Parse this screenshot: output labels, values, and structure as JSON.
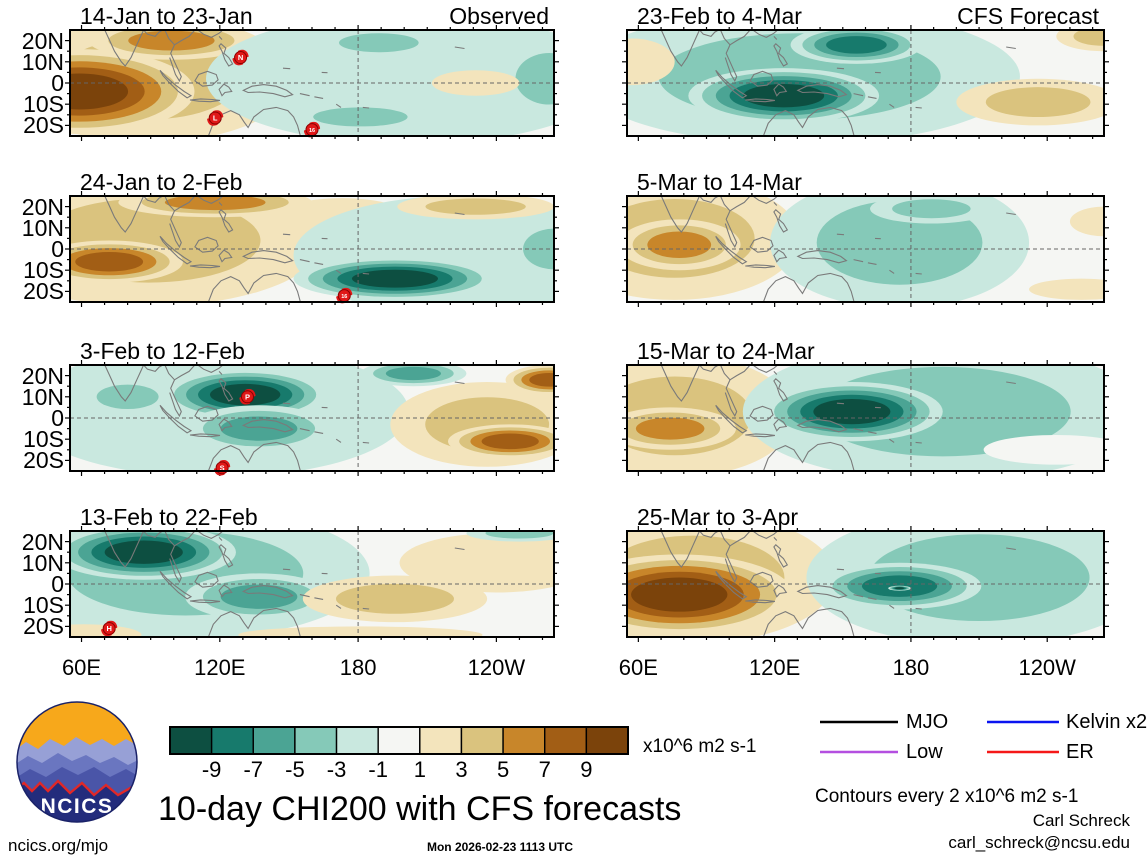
{
  "meta": {
    "title": "10-day CHI200 with CFS forecasts",
    "timestamp": "Mon 2026-02-23 1113 UTC",
    "site": "ncics.org/mjo",
    "contour_note": "Contours every 2 x10^6 m2 s-1",
    "credit_name": "Carl Schreck",
    "credit_email": "carl_schreck@ncsu.edu",
    "logo_text": "NCICS"
  },
  "chart_data": {
    "type": "heatmap",
    "subtype": "filled-contour longitude-latitude anomaly maps",
    "title": "10-day CHI200 with CFS forecasts",
    "units": "x10^6 m2 s-1",
    "columns": [
      "Observed",
      "CFS Forecast"
    ],
    "x_ticks": [
      {
        "lon": 60,
        "label": "60E"
      },
      {
        "lon": 120,
        "label": "120E"
      },
      {
        "lon": 180,
        "label": "180"
      },
      {
        "lon": 240,
        "label": "120W"
      }
    ],
    "y_ticks": [
      {
        "lat": 20,
        "label": "20N"
      },
      {
        "lat": 10,
        "label": "10N"
      },
      {
        "lat": 0,
        "label": "0"
      },
      {
        "lat": -10,
        "label": "10S"
      },
      {
        "lat": -20,
        "label": "20S"
      }
    ],
    "lon_range": [
      55,
      265
    ],
    "lat_range": [
      -25,
      25
    ],
    "grid": {
      "equator_dashed": true,
      "dateline_dashed": true
    },
    "colorbar": {
      "levels": [
        -9,
        -7,
        -5,
        -3,
        -1,
        1,
        3,
        5,
        7,
        9
      ],
      "colors": [
        "#0d4f41",
        "#177a6c",
        "#4ba494",
        "#85c9b8",
        "#c9e8df",
        "#f5f6f3",
        "#f3e4bc",
        "#dac37e",
        "#c8862a",
        "#a25e15",
        "#7b430b"
      ],
      "label": "x10^6 m2 s-1"
    },
    "legend": [
      {
        "label": "MJO",
        "color": "#000000"
      },
      {
        "label": "Kelvin x2",
        "color": "#0a14f0"
      },
      {
        "label": "Low",
        "color": "#b44fe0"
      },
      {
        "label": "ER",
        "color": "#f51818"
      }
    ],
    "panels": [
      {
        "title": "14-Jan to 23-Jan",
        "corner": "Observed",
        "side": "left",
        "row": 0,
        "centers": [
          {
            "lon": 89,
            "lat": 2,
            "rlon": 63,
            "rlat": 30,
            "peak": 3
          },
          {
            "lon": 59,
            "lat": -4,
            "rlon": 50,
            "rlat": 20,
            "peak": 9
          },
          {
            "lon": 99,
            "lat": 20,
            "rlon": 36,
            "rlat": 9,
            "peak": 5
          },
          {
            "lon": 202,
            "lat": 2,
            "rlon": 88,
            "rlat": 31,
            "peak": -1
          },
          {
            "lon": 181,
            "lat": -16,
            "rlon": 32,
            "rlat": 7,
            "peak": -3
          },
          {
            "lon": 189,
            "lat": 19,
            "rlon": 27,
            "rlat": 7,
            "peak": -3
          },
          {
            "lon": 263,
            "lat": 2,
            "rlon": 23,
            "rlat": 19,
            "peak": -3
          },
          {
            "lon": 231,
            "lat": 0,
            "rlon": 19,
            "rlat": 6,
            "peak": 1
          }
        ],
        "cyclones": [
          {
            "lon": 129,
            "lat": 12,
            "label": "N"
          },
          {
            "lon": 118,
            "lat": -16.5,
            "label": "L"
          },
          {
            "lon": 160,
            "lat": -22,
            "label": "16"
          }
        ]
      },
      {
        "title": "23-Feb to 4-Mar",
        "corner": "CFS Forecast",
        "side": "right",
        "row": 0,
        "centers": [
          {
            "lon": 131,
            "lat": 3,
            "rlon": 97,
            "rlat": 32,
            "peak": -3
          },
          {
            "lon": 124,
            "lat": -6,
            "rlon": 42,
            "rlat": 13,
            "peak": -9
          },
          {
            "lon": 156,
            "lat": 18,
            "rlon": 29,
            "rlat": 9,
            "peak": -7
          },
          {
            "lon": 57,
            "lat": 10,
            "rlon": 19,
            "rlat": 11,
            "peak": 1
          },
          {
            "lon": 236,
            "lat": -9,
            "rlon": 36,
            "rlat": 11,
            "peak": 3
          },
          {
            "lon": 265,
            "lat": 22,
            "rlon": 21,
            "rlat": 7,
            "peak": 3
          }
        ],
        "cyclones": []
      },
      {
        "title": "24-Jan to 2-Feb",
        "corner": "",
        "side": "left",
        "row": 1,
        "centers": [
          {
            "lon": 89,
            "lat": 4,
            "rlon": 76,
            "rlat": 31,
            "peak": 3
          },
          {
            "lon": 72,
            "lat": -6,
            "rlon": 32,
            "rlat": 10,
            "peak": 7
          },
          {
            "lon": 118,
            "lat": 22,
            "rlon": 42,
            "rlat": 7,
            "peak": 5
          },
          {
            "lon": 173,
            "lat": 15,
            "rlon": 29,
            "rlat": 9,
            "peak": 1
          },
          {
            "lon": 223,
            "lat": -3,
            "rlon": 71,
            "rlat": 28,
            "peak": -1
          },
          {
            "lon": 196,
            "lat": -14,
            "rlon": 44,
            "rlat": 10,
            "peak": -9
          },
          {
            "lon": 265,
            "lat": 0,
            "rlon": 21,
            "rlat": 15,
            "peak": -3
          },
          {
            "lon": 231,
            "lat": 20,
            "rlon": 34,
            "rlat": 6,
            "peak": 3
          }
        ],
        "cyclones": [
          {
            "lon": 174,
            "lat": -22,
            "label": "16"
          }
        ]
      },
      {
        "title": "5-Mar to 14-Mar",
        "corner": "",
        "side": "right",
        "row": 1,
        "centers": [
          {
            "lon": 76,
            "lat": 5,
            "rlon": 55,
            "rlat": 29,
            "peak": 3
          },
          {
            "lon": 78,
            "lat": 2,
            "rlon": 27,
            "rlat": 12,
            "peak": 5
          },
          {
            "lon": 175,
            "lat": 3,
            "rlon": 57,
            "rlat": 31,
            "peak": -3
          },
          {
            "lon": 189,
            "lat": 19,
            "rlon": 27,
            "rlat": 7,
            "peak": -3
          },
          {
            "lon": 255,
            "lat": -19,
            "rlon": 23,
            "rlat": 5,
            "peak": 1
          },
          {
            "lon": 265,
            "lat": 13,
            "rlon": 15,
            "rlat": 7,
            "peak": 1
          }
        ],
        "cyclones": []
      },
      {
        "title": "3-Feb to 12-Feb",
        "corner": "",
        "side": "left",
        "row": 2,
        "centers": [
          {
            "lon": 118,
            "lat": 3,
            "rlon": 84,
            "rlat": 31,
            "peak": -1
          },
          {
            "lon": 80,
            "lat": 10,
            "rlon": 21,
            "rlat": 9,
            "peak": -3
          },
          {
            "lon": 131,
            "lat": 11,
            "rlon": 36,
            "rlat": 12,
            "peak": -9
          },
          {
            "lon": 137,
            "lat": -5,
            "rlon": 32,
            "rlat": 11,
            "peak": -5
          },
          {
            "lon": 204,
            "lat": 21,
            "rlon": 23,
            "rlat": 6,
            "peak": -5
          },
          {
            "lon": 236,
            "lat": -3,
            "rlon": 42,
            "rlat": 20,
            "peak": 3
          },
          {
            "lon": 246,
            "lat": -11,
            "rlon": 27,
            "rlat": 8,
            "peak": 7
          },
          {
            "lon": 263,
            "lat": 18,
            "rlon": 19,
            "rlat": 7,
            "peak": 7
          }
        ],
        "cyclones": [
          {
            "lon": 132,
            "lat": 10,
            "label": "P"
          },
          {
            "lon": 121,
            "lat": -23.5,
            "label": "S"
          }
        ]
      },
      {
        "title": "15-Mar to 24-Mar",
        "corner": "",
        "side": "right",
        "row": 2,
        "centers": [
          {
            "lon": 76,
            "lat": 1,
            "rlon": 53,
            "rlat": 29,
            "peak": 3
          },
          {
            "lon": 74,
            "lat": -5,
            "rlon": 29,
            "rlat": 10,
            "peak": 5
          },
          {
            "lon": 194,
            "lat": 3,
            "rlon": 88,
            "rlat": 33,
            "peak": -3
          },
          {
            "lon": 154,
            "lat": 3,
            "rlon": 40,
            "rlat": 14,
            "peak": -9
          },
          {
            "lon": 244,
            "lat": -15,
            "rlon": 32,
            "rlat": 7,
            "peak": 0
          }
        ],
        "cyclones": []
      },
      {
        "title": "13-Feb to 22-Feb",
        "corner": "",
        "side": "left",
        "row": 3,
        "centers": [
          {
            "lon": 105,
            "lat": 5,
            "rlon": 80,
            "rlat": 31,
            "peak": -3
          },
          {
            "lon": 87,
            "lat": 15,
            "rlon": 40,
            "rlat": 13,
            "peak": -9
          },
          {
            "lon": 137,
            "lat": -6,
            "rlon": 32,
            "rlat": 11,
            "peak": -5
          },
          {
            "lon": 196,
            "lat": -7,
            "rlon": 40,
            "rlat": 11,
            "peak": 3
          },
          {
            "lon": 240,
            "lat": 10,
            "rlon": 42,
            "rlat": 14,
            "peak": 1
          },
          {
            "lon": 250,
            "lat": 24,
            "rlon": 23,
            "rlat": 4,
            "peak": -3
          },
          {
            "lon": 61,
            "lat": -24,
            "rlon": 25,
            "rlat": 5,
            "peak": 1
          },
          {
            "lon": 181,
            "lat": -24,
            "rlon": 53,
            "rlat": 4,
            "peak": 1
          }
        ],
        "cyclones": [
          {
            "lon": 72,
            "lat": -21,
            "label": "H"
          }
        ]
      },
      {
        "title": "25-Mar to 3-Apr",
        "corner": "",
        "side": "right",
        "row": 3,
        "centers": [
          {
            "lon": 84,
            "lat": 3,
            "rlon": 63,
            "rlat": 31,
            "peak": 3
          },
          {
            "lon": 78,
            "lat": -5,
            "rlon": 50,
            "rlat": 19,
            "peak": 9
          },
          {
            "lon": 210,
            "lat": 3,
            "rlon": 76,
            "rlat": 32,
            "peak": -3
          },
          {
            "lon": 175,
            "lat": -1,
            "rlon": 36,
            "rlat": 11,
            "peak": -7
          },
          {
            "lon": 175,
            "lat": -2,
            "rlon": 5,
            "rlat": 1.2,
            "peak": -9
          }
        ],
        "cyclones": []
      }
    ]
  }
}
